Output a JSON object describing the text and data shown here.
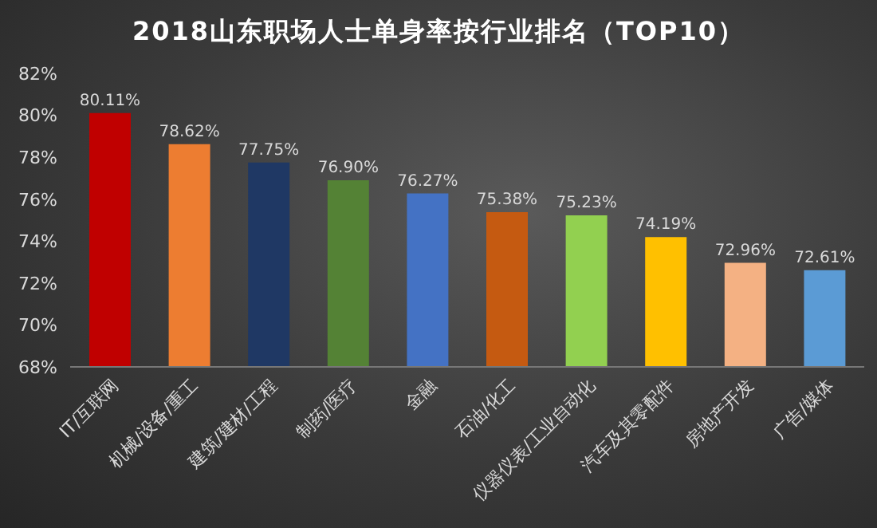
{
  "chart_data": {
    "type": "bar",
    "title": "2018山东职场人士单身率按行业排名（TOP10）",
    "categories": [
      "IT/互联网",
      "机械/设备/重工",
      "建筑/建材/工程",
      "制药/医疗",
      "金融",
      "石油/化工",
      "仪器仪表/工业自动化",
      "汽车及其零配件",
      "房地产开发",
      "广告/媒体"
    ],
    "values": [
      80.11,
      78.62,
      77.75,
      76.9,
      76.27,
      75.38,
      75.23,
      74.19,
      72.96,
      72.61
    ],
    "value_labels": [
      "80.11%",
      "78.62%",
      "77.75%",
      "76.90%",
      "76.27%",
      "75.38%",
      "75.23%",
      "74.19%",
      "72.96%",
      "72.61%"
    ],
    "colors": [
      "#c00000",
      "#ed7d31",
      "#1f3864",
      "#548235",
      "#4472c4",
      "#c55a11",
      "#92d050",
      "#ffc000",
      "#f4b183",
      "#5b9bd5"
    ],
    "ylim": [
      68,
      82
    ],
    "yticks": [
      {
        "value": 68,
        "label": "68%"
      },
      {
        "value": 70,
        "label": "70%"
      },
      {
        "value": 72,
        "label": "72%"
      },
      {
        "value": 74,
        "label": "74%"
      },
      {
        "value": 76,
        "label": "76%"
      },
      {
        "value": 78,
        "label": "78%"
      },
      {
        "value": 80,
        "label": "80%"
      },
      {
        "value": 82,
        "label": "82%"
      }
    ],
    "grid": false,
    "legend": false
  }
}
